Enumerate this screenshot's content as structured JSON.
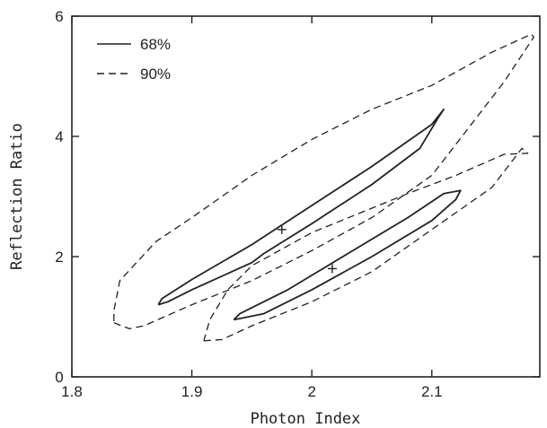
{
  "chart_data": {
    "type": "line",
    "title": "",
    "xlabel": "Photon Index",
    "ylabel": "Reflection Ratio",
    "xlim": [
      1.8,
      2.19
    ],
    "ylim": [
      0,
      6
    ],
    "xticks": [
      1.8,
      1.9,
      2.0,
      2.1
    ],
    "xtick_labels": [
      "1.8",
      "1.9",
      "2",
      "2.1"
    ],
    "yticks": [
      0,
      2,
      4,
      6
    ],
    "ytick_labels": [
      "0",
      "2",
      "4",
      "6"
    ],
    "grid": false,
    "legend_position": "top-left",
    "legend": [
      {
        "label": "68%",
        "style": "solid"
      },
      {
        "label": "90%",
        "style": "dashed"
      }
    ],
    "series": [
      {
        "name": "68%",
        "style": "solid",
        "contours": [
          {
            "best_fit": [
              1.975,
              2.45
            ],
            "points": [
              [
                1.872,
                1.2
              ],
              [
                1.875,
                1.3
              ],
              [
                1.9,
                1.62
              ],
              [
                1.95,
                2.2
              ],
              [
                2.0,
                2.85
              ],
              [
                2.05,
                3.5
              ],
              [
                2.1,
                4.2
              ],
              [
                2.11,
                4.45
              ],
              [
                2.105,
                4.3
              ],
              [
                2.09,
                3.8
              ],
              [
                2.05,
                3.2
              ],
              [
                2.0,
                2.55
              ],
              [
                1.96,
                2.05
              ],
              [
                1.95,
                1.9
              ],
              [
                1.9,
                1.45
              ],
              [
                1.88,
                1.25
              ],
              [
                1.872,
                1.2
              ]
            ]
          },
          {
            "best_fit": [
              2.017,
              1.8
            ],
            "points": [
              [
                1.935,
                0.95
              ],
              [
                1.94,
                1.05
              ],
              [
                1.98,
                1.45
              ],
              [
                2.03,
                2.05
              ],
              [
                2.08,
                2.65
              ],
              [
                2.11,
                3.05
              ],
              [
                2.124,
                3.1
              ],
              [
                2.12,
                2.95
              ],
              [
                2.1,
                2.6
              ],
              [
                2.05,
                2.0
              ],
              [
                2.0,
                1.45
              ],
              [
                1.96,
                1.05
              ],
              [
                1.935,
                0.95
              ]
            ]
          }
        ]
      },
      {
        "name": "90%",
        "style": "dashed",
        "contours": [
          {
            "points": [
              [
                1.835,
                0.9
              ],
              [
                1.848,
                0.8
              ],
              [
                1.86,
                0.85
              ],
              [
                1.9,
                1.2
              ],
              [
                1.95,
                1.6
              ],
              [
                2.0,
                2.1
              ],
              [
                2.05,
                2.65
              ],
              [
                2.1,
                3.35
              ],
              [
                2.16,
                4.9
              ],
              [
                2.185,
                5.65
              ],
              [
                2.183,
                5.7
              ],
              [
                2.15,
                5.4
              ],
              [
                2.1,
                4.85
              ],
              [
                2.05,
                4.45
              ],
              [
                2.0,
                3.95
              ],
              [
                1.95,
                3.35
              ],
              [
                1.9,
                2.65
              ],
              [
                1.87,
                2.25
              ],
              [
                1.84,
                1.6
              ],
              [
                1.835,
                1.1
              ],
              [
                1.835,
                0.9
              ]
            ]
          },
          {
            "points": [
              [
                1.91,
                0.6
              ],
              [
                1.925,
                0.62
              ],
              [
                1.95,
                0.85
              ],
              [
                2.0,
                1.25
              ],
              [
                2.05,
                1.75
              ],
              [
                2.1,
                2.45
              ],
              [
                2.15,
                3.15
              ],
              [
                2.175,
                3.8
              ],
              [
                2.18,
                3.72
              ],
              [
                2.16,
                3.7
              ],
              [
                2.12,
                3.35
              ],
              [
                2.08,
                3.05
              ],
              [
                2.0,
                2.4
              ],
              [
                1.95,
                1.85
              ],
              [
                1.93,
                1.45
              ],
              [
                1.915,
                0.95
              ],
              [
                1.91,
                0.6
              ]
            ]
          }
        ]
      }
    ]
  }
}
